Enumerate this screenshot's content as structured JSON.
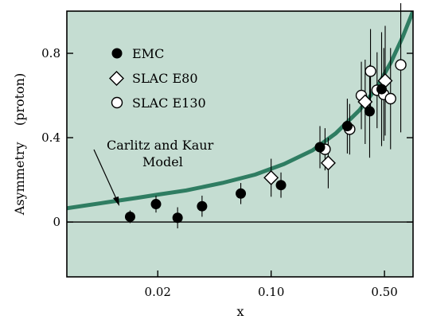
{
  "chart_data": {
    "type": "scatter",
    "xlabel": "x",
    "ylabel": "Asymmetry    (proton)",
    "xscale": "log",
    "xlim": [
      0.0055,
      0.75
    ],
    "ylim": [
      -0.26,
      1.0
    ],
    "x_ticks": [
      {
        "value": 0.02,
        "label": "0.02"
      },
      {
        "value": 0.1,
        "label": "0.10"
      },
      {
        "value": 0.5,
        "label": "0.50"
      }
    ],
    "y_ticks": [
      {
        "value": 0,
        "label": "0"
      },
      {
        "value": 0.4,
        "label": "0.4"
      },
      {
        "value": 0.8,
        "label": "0.8"
      }
    ],
    "zero_line": true,
    "background_color": "#c5ddd2",
    "curve_color": "#2f7d62",
    "legend_position": "top-left",
    "series": [
      {
        "name": "EMC",
        "marker": "filled-circle",
        "points": [
          {
            "x": 0.0135,
            "y": 0.025,
            "err": 0.03
          },
          {
            "x": 0.0195,
            "y": 0.085,
            "err": 0.04
          },
          {
            "x": 0.0265,
            "y": 0.02,
            "err": 0.05
          },
          {
            "x": 0.0375,
            "y": 0.075,
            "err": 0.05
          },
          {
            "x": 0.065,
            "y": 0.135,
            "err": 0.05
          },
          {
            "x": 0.115,
            "y": 0.175,
            "err": 0.06
          },
          {
            "x": 0.2,
            "y": 0.355,
            "err": 0.1
          },
          {
            "x": 0.295,
            "y": 0.455,
            "err": 0.13
          },
          {
            "x": 0.405,
            "y": 0.525,
            "err": 0.22
          },
          {
            "x": 0.48,
            "y": 0.63,
            "err": 0.27
          }
        ]
      },
      {
        "name": "SLAC E80",
        "marker": "open-diamond",
        "points": [
          {
            "x": 0.1,
            "y": 0.21,
            "err": 0.09
          },
          {
            "x": 0.225,
            "y": 0.28,
            "err": 0.12
          },
          {
            "x": 0.38,
            "y": 0.57,
            "err": 0.2
          },
          {
            "x": 0.505,
            "y": 0.67,
            "err": 0.26
          }
        ]
      },
      {
        "name": "SLAC E130",
        "marker": "open-circle",
        "points": [
          {
            "x": 0.215,
            "y": 0.345,
            "err": 0.1
          },
          {
            "x": 0.305,
            "y": 0.44,
            "err": 0.12
          },
          {
            "x": 0.36,
            "y": 0.6,
            "err": 0.16
          },
          {
            "x": 0.41,
            "y": 0.715,
            "err": 0.2
          },
          {
            "x": 0.45,
            "y": 0.625,
            "err": 0.18
          },
          {
            "x": 0.495,
            "y": 0.605,
            "err": 0.22
          },
          {
            "x": 0.545,
            "y": 0.585,
            "err": 0.24
          },
          {
            "x": 0.63,
            "y": 0.745,
            "err": 0.32
          }
        ]
      }
    ],
    "model_curve": {
      "points": [
        {
          "x": 0.0055,
          "y": 0.065
        },
        {
          "x": 0.01,
          "y": 0.095
        },
        {
          "x": 0.015,
          "y": 0.115
        },
        {
          "x": 0.02,
          "y": 0.13
        },
        {
          "x": 0.03,
          "y": 0.15
        },
        {
          "x": 0.05,
          "y": 0.185
        },
        {
          "x": 0.08,
          "y": 0.225
        },
        {
          "x": 0.12,
          "y": 0.275
        },
        {
          "x": 0.18,
          "y": 0.34
        },
        {
          "x": 0.25,
          "y": 0.42
        },
        {
          "x": 0.35,
          "y": 0.53
        },
        {
          "x": 0.45,
          "y": 0.64
        },
        {
          "x": 0.55,
          "y": 0.76
        },
        {
          "x": 0.65,
          "y": 0.88
        },
        {
          "x": 0.75,
          "y": 1.0
        }
      ]
    },
    "annotation": {
      "line1": "Carlitz and Kaur",
      "line2": "Model"
    }
  }
}
